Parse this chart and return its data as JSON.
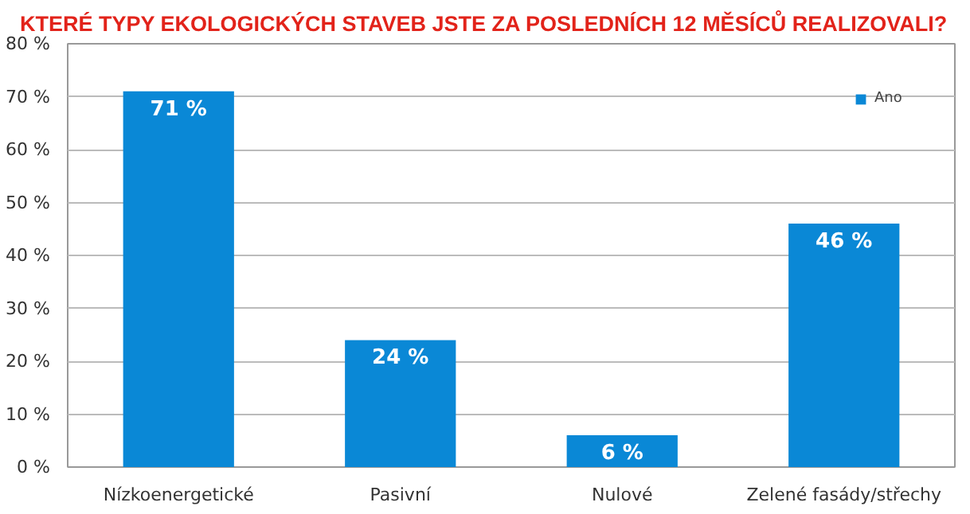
{
  "chart_data": {
    "type": "bar",
    "title": "KTERÉ TYPY EKOLOGICKÝCH STAVEB JSTE ZA POSLEDNÍCH 12 MĚSÍCŮ REALIZOVALI?",
    "categories": [
      "Nízkoenergetické",
      "Pasivní",
      "Nulové",
      "Zelené fasády/střechy"
    ],
    "series": [
      {
        "name": "Ano",
        "color": "#0a88d6",
        "values": [
          71,
          24,
          6,
          46
        ],
        "value_labels": [
          "71 %",
          "24 %",
          "6 %",
          "46 %"
        ]
      }
    ],
    "ylim": [
      0,
      80
    ],
    "yticks": [
      {
        "value": 0,
        "label": "0 %"
      },
      {
        "value": 10,
        "label": "10 %"
      },
      {
        "value": 20,
        "label": "20 %"
      },
      {
        "value": 30,
        "label": "30 %"
      },
      {
        "value": 40,
        "label": "40 %"
      },
      {
        "value": 50,
        "label": "50 %"
      },
      {
        "value": 60,
        "label": "60 %"
      },
      {
        "value": 70,
        "label": "70 %"
      },
      {
        "value": 80,
        "label": "80 %"
      }
    ],
    "grid": "y",
    "legend": "top right"
  }
}
